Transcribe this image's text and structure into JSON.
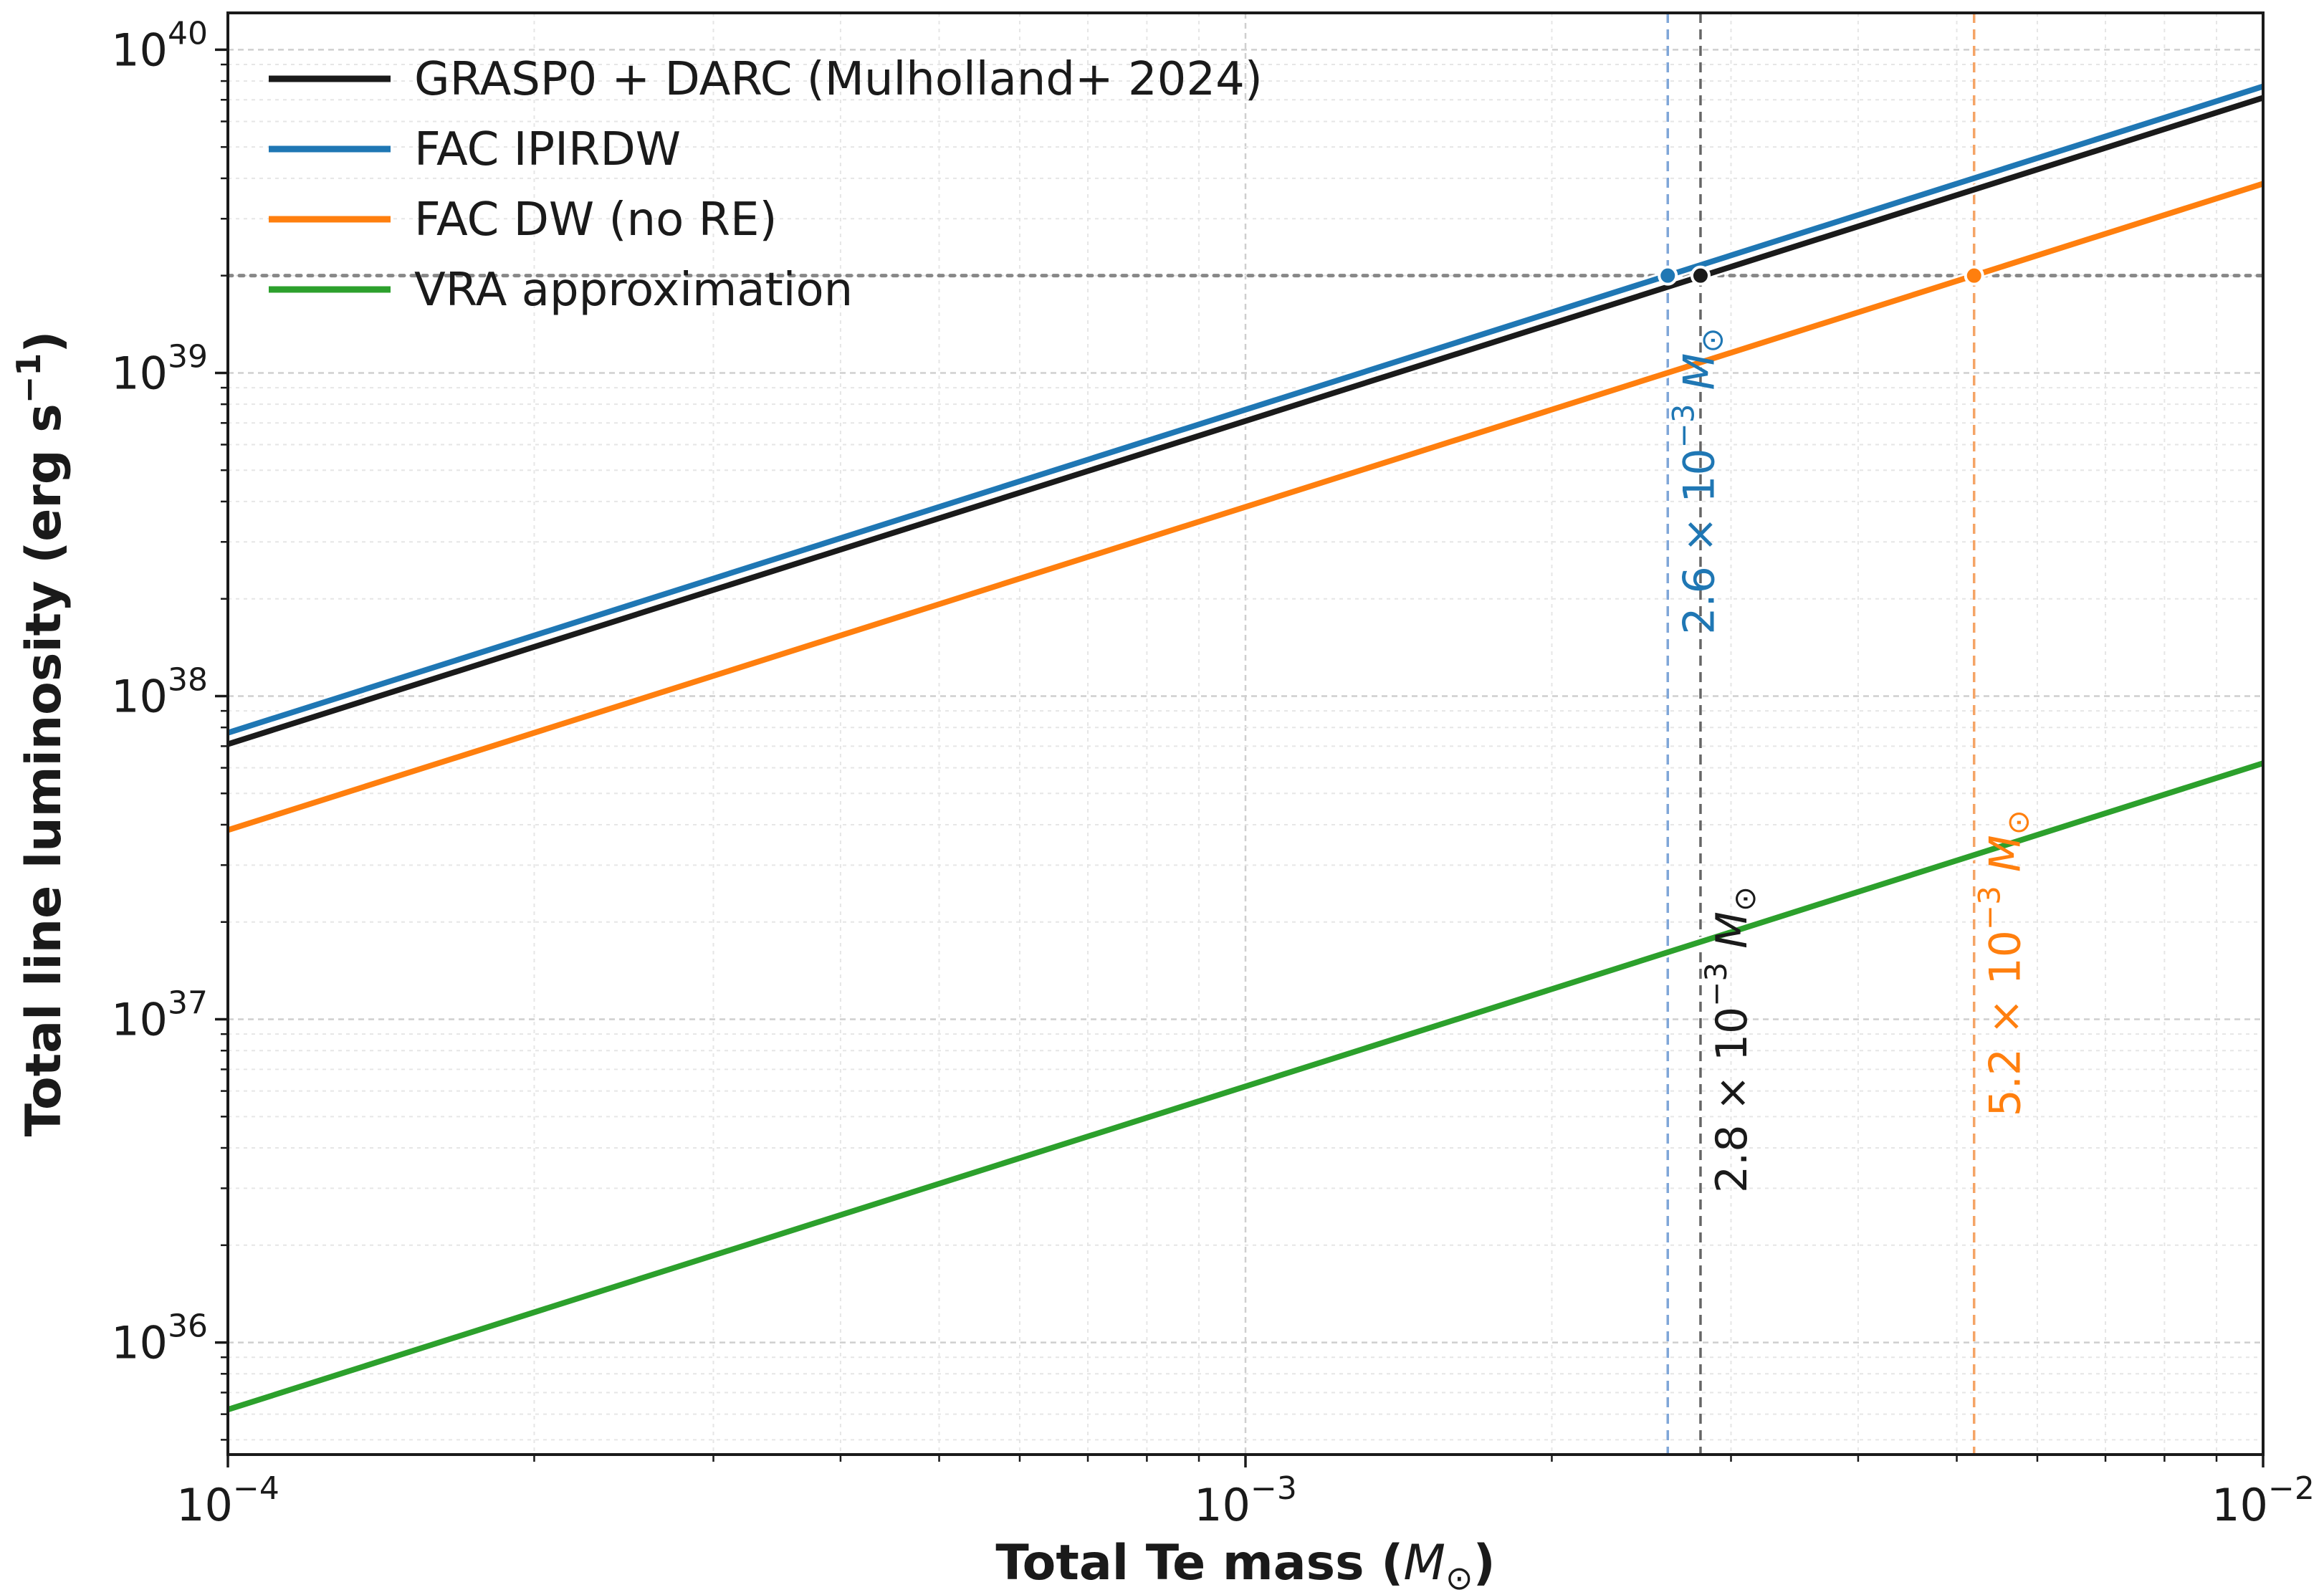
{
  "chart_data": {
    "type": "line",
    "xlabel_pre": "Total Te mass (",
    "xlabel_sym": "M",
    "xlabel_sub": "⊙",
    "xlabel_post": ")",
    "ylabel": "Total line luminosity (erg s",
    "ylabel_exp": "−1",
    "ylabel_post": ")",
    "xscale": "log",
    "yscale": "log",
    "xlim": [
      0.0001,
      0.01
    ],
    "ylim": [
      4.5e+35,
      1.3e+40
    ],
    "grid": true,
    "legend_position": "top-left",
    "x_ticks": [
      {
        "value": 0.0001,
        "base": "10",
        "exp": "−4"
      },
      {
        "value": 0.001,
        "base": "10",
        "exp": "−3"
      },
      {
        "value": 0.01,
        "base": "10",
        "exp": "−2"
      }
    ],
    "y_ticks": [
      {
        "value": 1e+36,
        "base": "10",
        "exp": "36"
      },
      {
        "value": 1e+37,
        "base": "10",
        "exp": "37"
      },
      {
        "value": 1e+38,
        "base": "10",
        "exp": "38"
      },
      {
        "value": 1e+39,
        "base": "10",
        "exp": "39"
      },
      {
        "value": 1e+40,
        "base": "10",
        "exp": "40"
      }
    ],
    "series": [
      {
        "name": "GRASP0 + DARC (Mulholland+ 2024)",
        "color": "#1a1a1a",
        "x": [
          0.0001,
          0.01
        ],
        "y": [
          7.1e+37,
          7.1e+39
        ]
      },
      {
        "name": "FAC IPIRDW",
        "color": "#1f77b4",
        "x": [
          0.0001,
          0.01
        ],
        "y": [
          7.7e+37,
          7.7e+39
        ]
      },
      {
        "name": "FAC DW (no RE)",
        "color": "#ff7f0e",
        "x": [
          0.0001,
          0.01
        ],
        "y": [
          3.85e+37,
          3.85e+39
        ]
      },
      {
        "name": "VRA approximation",
        "color": "#2ca02c",
        "x": [
          0.0001,
          0.01
        ],
        "y": [
          6.2e+35,
          6.2e+37
        ]
      }
    ],
    "reference_line": {
      "y": 2e+39,
      "color": "#888888"
    },
    "markers": [
      {
        "x": 0.0026,
        "y": 2e+39,
        "color": "#1f77b4",
        "line_color": "#7fa6d8",
        "label_main": "2.6 × 10",
        "label_exp": "−3",
        "label_unit": "M",
        "label_sub": "⊙",
        "label_y": 1.55e+38
      },
      {
        "x": 0.0028,
        "y": 2e+39,
        "color": "#1a1a1a",
        "line_color": "#666666",
        "label_main": "2.8 × 10",
        "label_exp": "−3",
        "label_unit": "M",
        "label_sub": "⊙",
        "label_y": 2.9e+36
      },
      {
        "x": 0.0052,
        "y": 2e+39,
        "color": "#ff7f0e",
        "line_color": "#f5a466",
        "label_main": "5.2 × 10",
        "label_exp": "−3",
        "label_unit": "M",
        "label_sub": "⊙",
        "label_y": 5e+36
      }
    ]
  }
}
